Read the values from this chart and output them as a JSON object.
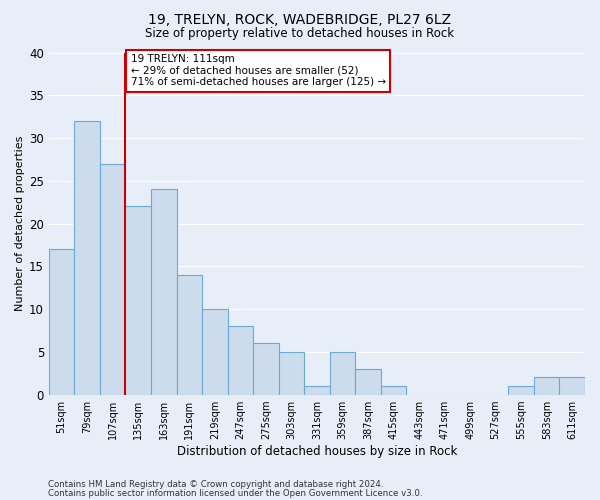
{
  "title": "19, TRELYN, ROCK, WADEBRIDGE, PL27 6LZ",
  "subtitle": "Size of property relative to detached houses in Rock",
  "xlabel": "Distribution of detached houses by size in Rock",
  "ylabel": "Number of detached properties",
  "bar_color": "#ccdcec",
  "bar_edge_color": "#6aaad4",
  "categories": [
    "51sqm",
    "79sqm",
    "107sqm",
    "135sqm",
    "163sqm",
    "191sqm",
    "219sqm",
    "247sqm",
    "275sqm",
    "303sqm",
    "331sqm",
    "359sqm",
    "387sqm",
    "415sqm",
    "443sqm",
    "471sqm",
    "499sqm",
    "527sqm",
    "555sqm",
    "583sqm",
    "611sqm"
  ],
  "values": [
    17,
    32,
    27,
    22,
    24,
    14,
    10,
    8,
    6,
    5,
    1,
    5,
    3,
    1,
    0,
    0,
    0,
    0,
    1,
    2,
    2
  ],
  "ylim": [
    0,
    40
  ],
  "yticks": [
    0,
    5,
    10,
    15,
    20,
    25,
    30,
    35,
    40
  ],
  "vline_index": 2,
  "vline_color": "#cc0000",
  "annotation_line1": "19 TRELYN: 111sqm",
  "annotation_line2": "← 29% of detached houses are smaller (52)",
  "annotation_line3": "71% of semi-detached houses are larger (125) →",
  "annotation_box_color": "#ffffff",
  "annotation_box_edge_color": "#cc0000",
  "footnote1": "Contains HM Land Registry data © Crown copyright and database right 2024.",
  "footnote2": "Contains public sector information licensed under the Open Government Licence v3.0.",
  "background_color": "#e8eef8",
  "grid_color": "#ffffff"
}
